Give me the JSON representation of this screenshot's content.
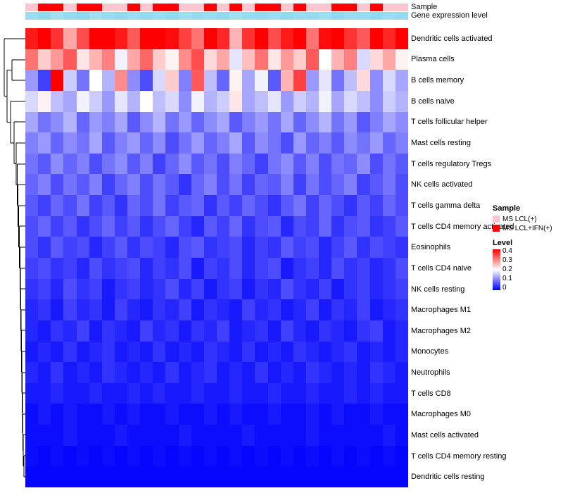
{
  "header": {
    "sample_label": "Sample",
    "gene_label": "Gene expression level"
  },
  "legend": {
    "sample": {
      "title": "Sample",
      "items": [
        {
          "label": "MS LCL(+)",
          "color": "#FCC5D0"
        },
        {
          "label": "MS LCL+IFN(+)",
          "color": "#FF0000"
        }
      ]
    },
    "level": {
      "title": "Level",
      "ticks": [
        "0.4",
        "0.3",
        "0.2",
        "0.1",
        "0"
      ],
      "gradient": [
        "#FF0000",
        "#FFFFFF",
        "#0000FE"
      ]
    }
  },
  "annotations": {
    "sample_type_index": [
      0,
      1,
      1,
      0,
      1,
      1,
      0,
      0,
      1,
      0,
      1,
      1,
      0,
      0,
      1,
      0,
      1,
      0,
      1,
      1,
      0,
      1,
      0,
      0,
      1,
      1,
      0,
      1,
      0,
      0
    ],
    "gene_expression": [
      0.55,
      0.6,
      0.5,
      0.58,
      0.62,
      0.52,
      0.57,
      0.6,
      0.54,
      0.59,
      0.56,
      0.61,
      0.53,
      0.58,
      0.55,
      0.6,
      0.52,
      0.57,
      0.59,
      0.54,
      0.6,
      0.56,
      0.58,
      0.53,
      0.61,
      0.55,
      0.57,
      0.6,
      0.54,
      0.58
    ],
    "gene_color": "#49BFE3"
  },
  "chart_data": {
    "type": "heatmap",
    "title": "",
    "legend_position": "right",
    "columns": 30,
    "colormap": {
      "min": 0,
      "mid": 0.2,
      "max": 0.4,
      "min_color": "#0000FE",
      "mid_color": "#FFFFFF",
      "max_color": "#FF0000"
    },
    "row_labels": [
      "Dendritic cells activated",
      "Plasma cells",
      "B cells memory",
      "B cells naive",
      "T cells follicular helper",
      "Mast cells resting",
      "T cells regulatory Tregs",
      "NK cells activated",
      "T cells gamma delta",
      "T cells CD4 memory activated",
      "Eosinophils",
      "T cells CD4 naive",
      "NK cells resting",
      "Macrophages M1",
      "Macrophages M2",
      "Monocytes",
      "Neutrophils",
      "T cells CD8",
      "Macrophages M0",
      "Mast cells activated",
      "T cells CD4 memory resting",
      "Dendritic cells resting"
    ],
    "matrix": [
      [
        0.38,
        0.42,
        0.36,
        0.27,
        0.34,
        0.4,
        0.43,
        0.38,
        0.33,
        0.41,
        0.44,
        0.39,
        0.35,
        0.31,
        0.42,
        0.37,
        0.26,
        0.36,
        0.4,
        0.34,
        0.38,
        0.43,
        0.31,
        0.39,
        0.42,
        0.36,
        0.33,
        0.4,
        0.37,
        0.41
      ],
      [
        0.31,
        0.24,
        0.28,
        0.33,
        0.22,
        0.26,
        0.3,
        0.19,
        0.27,
        0.32,
        0.24,
        0.21,
        0.29,
        0.34,
        0.23,
        0.27,
        0.18,
        0.25,
        0.31,
        0.22,
        0.28,
        0.24,
        0.33,
        0.2,
        0.26,
        0.3,
        0.17,
        0.23,
        0.27,
        0.21
      ],
      [
        0.12,
        0.05,
        0.4,
        0.16,
        0.09,
        0.2,
        0.14,
        0.29,
        0.11,
        0.06,
        0.17,
        0.24,
        0.1,
        0.33,
        0.15,
        0.08,
        0.21,
        0.13,
        0.19,
        0.07,
        0.26,
        0.35,
        0.12,
        0.18,
        0.09,
        0.15,
        0.23,
        0.11,
        0.17,
        0.13
      ],
      [
        0.17,
        0.21,
        0.15,
        0.13,
        0.19,
        0.16,
        0.12,
        0.18,
        0.14,
        0.2,
        0.15,
        0.17,
        0.11,
        0.19,
        0.14,
        0.16,
        0.22,
        0.13,
        0.15,
        0.18,
        0.12,
        0.16,
        0.14,
        0.19,
        0.13,
        0.17,
        0.15,
        0.11,
        0.16,
        0.14
      ],
      [
        0.13,
        0.09,
        0.11,
        0.14,
        0.08,
        0.12,
        0.1,
        0.13,
        0.07,
        0.11,
        0.14,
        0.09,
        0.12,
        0.08,
        0.11,
        0.13,
        0.07,
        0.1,
        0.12,
        0.09,
        0.13,
        0.08,
        0.11,
        0.14,
        0.09,
        0.12,
        0.07,
        0.1,
        0.13,
        0.11
      ],
      [
        0.1,
        0.12,
        0.08,
        0.11,
        0.09,
        0.13,
        0.07,
        0.1,
        0.12,
        0.08,
        0.11,
        0.06,
        0.09,
        0.12,
        0.08,
        0.1,
        0.13,
        0.07,
        0.11,
        0.09,
        0.06,
        0.12,
        0.08,
        0.1,
        0.07,
        0.11,
        0.09,
        0.12,
        0.08,
        0.1
      ],
      [
        0.09,
        0.07,
        0.11,
        0.08,
        0.1,
        0.06,
        0.09,
        0.11,
        0.07,
        0.1,
        0.05,
        0.08,
        0.11,
        0.07,
        0.09,
        0.06,
        0.1,
        0.08,
        0.05,
        0.09,
        0.11,
        0.07,
        0.1,
        0.06,
        0.09,
        0.08,
        0.11,
        0.06,
        0.09,
        0.07
      ],
      [
        0.08,
        0.1,
        0.06,
        0.09,
        0.07,
        0.1,
        0.05,
        0.08,
        0.1,
        0.06,
        0.09,
        0.07,
        0.04,
        0.08,
        0.1,
        0.06,
        0.09,
        0.05,
        0.08,
        0.07,
        0.1,
        0.05,
        0.09,
        0.06,
        0.08,
        0.1,
        0.05,
        0.07,
        0.09,
        0.06
      ],
      [
        0.07,
        0.05,
        0.08,
        0.06,
        0.09,
        0.05,
        0.07,
        0.04,
        0.08,
        0.06,
        0.09,
        0.05,
        0.07,
        0.08,
        0.04,
        0.07,
        0.05,
        0.08,
        0.06,
        0.04,
        0.07,
        0.09,
        0.05,
        0.08,
        0.06,
        0.04,
        0.07,
        0.05,
        0.08,
        0.06
      ],
      [
        0.06,
        0.08,
        0.05,
        0.07,
        0.04,
        0.06,
        0.08,
        0.05,
        0.07,
        0.04,
        0.06,
        0.08,
        0.05,
        0.03,
        0.07,
        0.05,
        0.08,
        0.04,
        0.06,
        0.07,
        0.03,
        0.06,
        0.05,
        0.08,
        0.04,
        0.06,
        0.07,
        0.04,
        0.05,
        0.07
      ],
      [
        0.06,
        0.04,
        0.07,
        0.05,
        0.06,
        0.03,
        0.05,
        0.07,
        0.04,
        0.06,
        0.05,
        0.03,
        0.06,
        0.07,
        0.04,
        0.05,
        0.06,
        0.03,
        0.05,
        0.04,
        0.07,
        0.05,
        0.06,
        0.03,
        0.05,
        0.07,
        0.04,
        0.06,
        0.05,
        0.04
      ],
      [
        0.05,
        0.06,
        0.04,
        0.05,
        0.03,
        0.06,
        0.04,
        0.05,
        0.06,
        0.03,
        0.05,
        0.04,
        0.06,
        0.02,
        0.05,
        0.04,
        0.06,
        0.03,
        0.05,
        0.06,
        0.02,
        0.04,
        0.05,
        0.03,
        0.06,
        0.04,
        0.05,
        0.03,
        0.04,
        0.06
      ],
      [
        0.04,
        0.05,
        0.03,
        0.06,
        0.04,
        0.05,
        0.02,
        0.04,
        0.05,
        0.03,
        0.04,
        0.06,
        0.03,
        0.05,
        0.02,
        0.04,
        0.05,
        0.02,
        0.04,
        0.03,
        0.06,
        0.04,
        0.03,
        0.05,
        0.02,
        0.04,
        0.05,
        0.03,
        0.04,
        0.05
      ],
      [
        0.03,
        0.04,
        0.02,
        0.05,
        0.03,
        0.04,
        0.02,
        0.05,
        0.03,
        0.02,
        0.04,
        0.03,
        0.05,
        0.02,
        0.04,
        0.03,
        0.02,
        0.05,
        0.03,
        0.04,
        0.02,
        0.03,
        0.05,
        0.02,
        0.04,
        0.03,
        0.05,
        0.02,
        0.03,
        0.04
      ],
      [
        0.03,
        0.02,
        0.04,
        0.03,
        0.05,
        0.02,
        0.04,
        0.03,
        0.02,
        0.05,
        0.03,
        0.04,
        0.02,
        0.04,
        0.03,
        0.05,
        0.02,
        0.03,
        0.04,
        0.02,
        0.05,
        0.03,
        0.02,
        0.04,
        0.03,
        0.02,
        0.04,
        0.05,
        0.02,
        0.03
      ],
      [
        0.02,
        0.03,
        0.02,
        0.04,
        0.02,
        0.03,
        0.04,
        0.02,
        0.03,
        0.02,
        0.04,
        0.02,
        0.03,
        0.02,
        0.04,
        0.03,
        0.02,
        0.04,
        0.02,
        0.03,
        0.02,
        0.04,
        0.03,
        0.02,
        0.03,
        0.04,
        0.02,
        0.03,
        0.02,
        0.03
      ],
      [
        0.03,
        0.02,
        0.04,
        0.02,
        0.03,
        0.02,
        0.04,
        0.03,
        0.02,
        0.03,
        0.02,
        0.04,
        0.02,
        0.03,
        0.04,
        0.02,
        0.03,
        0.02,
        0.04,
        0.02,
        0.03,
        0.02,
        0.04,
        0.03,
        0.02,
        0.03,
        0.02,
        0.04,
        0.03,
        0.02
      ],
      [
        0.02,
        0.02,
        0.03,
        0.02,
        0.02,
        0.03,
        0.02,
        0.02,
        0.03,
        0.02,
        0.03,
        0.02,
        0.02,
        0.03,
        0.02,
        0.02,
        0.03,
        0.02,
        0.02,
        0.03,
        0.02,
        0.02,
        0.03,
        0.02,
        0.02,
        0.03,
        0.02,
        0.03,
        0.02,
        0.02
      ],
      [
        0.01,
        0.02,
        0.01,
        0.02,
        0.01,
        0.01,
        0.02,
        0.01,
        0.02,
        0.01,
        0.01,
        0.02,
        0.01,
        0.01,
        0.02,
        0.01,
        0.02,
        0.01,
        0.01,
        0.02,
        0.01,
        0.01,
        0.02,
        0.01,
        0.02,
        0.01,
        0.01,
        0.02,
        0.01,
        0.01
      ],
      [
        0.01,
        0.01,
        0.01,
        0.02,
        0.01,
        0.01,
        0.01,
        0.02,
        0.01,
        0.01,
        0.01,
        0.01,
        0.02,
        0.01,
        0.01,
        0.01,
        0.01,
        0.02,
        0.01,
        0.01,
        0.01,
        0.01,
        0.02,
        0.01,
        0.01,
        0.01,
        0.01,
        0.01,
        0.02,
        0.01
      ],
      [
        0.01,
        0.005,
        0.01,
        0.005,
        0.01,
        0.005,
        0.01,
        0.005,
        0.01,
        0.005,
        0.01,
        0.005,
        0.01,
        0.005,
        0.01,
        0.005,
        0.01,
        0.005,
        0.01,
        0.005,
        0.01,
        0.005,
        0.01,
        0.005,
        0.01,
        0.005,
        0.01,
        0.005,
        0.01,
        0.005
      ],
      [
        0.005,
        0.005,
        0.005,
        0.005,
        0.005,
        0.005,
        0.005,
        0.005,
        0.005,
        0.005,
        0.005,
        0.005,
        0.005,
        0.005,
        0.005,
        0.005,
        0.005,
        0.005,
        0.005,
        0.005,
        0.005,
        0.005,
        0.005,
        0.005,
        0.005,
        0.005,
        0.005,
        0.005,
        0.005,
        0.005
      ]
    ]
  }
}
